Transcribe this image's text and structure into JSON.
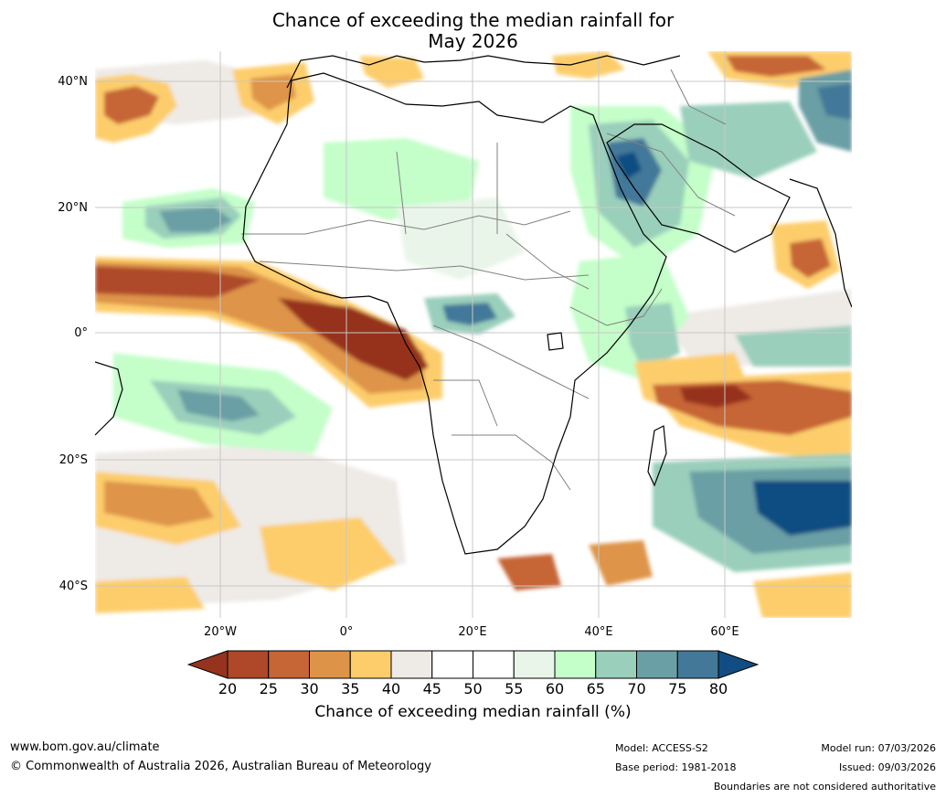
{
  "title": {
    "line1": "Chance of exceeding the median rainfall for",
    "line2": "May 2026"
  },
  "map": {
    "lat_labels": [
      "40°N",
      "20°N",
      "0°",
      "20°S",
      "40°S"
    ],
    "lon_labels": [
      "20°W",
      "0°",
      "20°E",
      "40°E",
      "60°E"
    ],
    "colors": {
      "ocean": "#ffffff",
      "land": "#ffffff",
      "coast": "#000000",
      "border": "#808080",
      "grid": "#c8c8c8"
    },
    "features": [
      {
        "name": "dry-atlantic-tropical",
        "category": "20"
      },
      {
        "name": "dry-gulf-of-guinea",
        "category": "20"
      },
      {
        "name": "wet-central-africa",
        "category": "80"
      },
      {
        "name": "wet-red-sea",
        "category": "80"
      },
      {
        "name": "wet-south-indian-ocean",
        "category": "80"
      },
      {
        "name": "dry-arabian-sea",
        "category": "25"
      },
      {
        "name": "dry-indian-ocean-south",
        "category": "25"
      }
    ]
  },
  "colorbar": {
    "label": "Chance of exceeding median rainfall (%)",
    "ticks": [
      "20",
      "25",
      "30",
      "35",
      "40",
      "45",
      "50",
      "55",
      "60",
      "65",
      "70",
      "75",
      "80"
    ],
    "colors": [
      "#96331e",
      "#ae4829",
      "#c66535",
      "#de9448",
      "#fdcd6c",
      "#eeeae6",
      "#ffffff",
      "#ffffff",
      "#e9f5e9",
      "#c4fec9",
      "#9acfbb",
      "#6a9fa5",
      "#437899",
      "#114d82"
    ]
  },
  "footer": {
    "website": "www.bom.gov.au/climate",
    "copyright": "© Commonwealth of Australia 2026, Australian Bureau of Meteorology",
    "model": "Model: ACCESS-S2",
    "base_period": "Base period: 1981-2018",
    "model_run": "Model run: 07/03/2026",
    "issued": "Issued: 09/03/2026",
    "disclaimer": "Boundaries are not considered authoritative"
  }
}
